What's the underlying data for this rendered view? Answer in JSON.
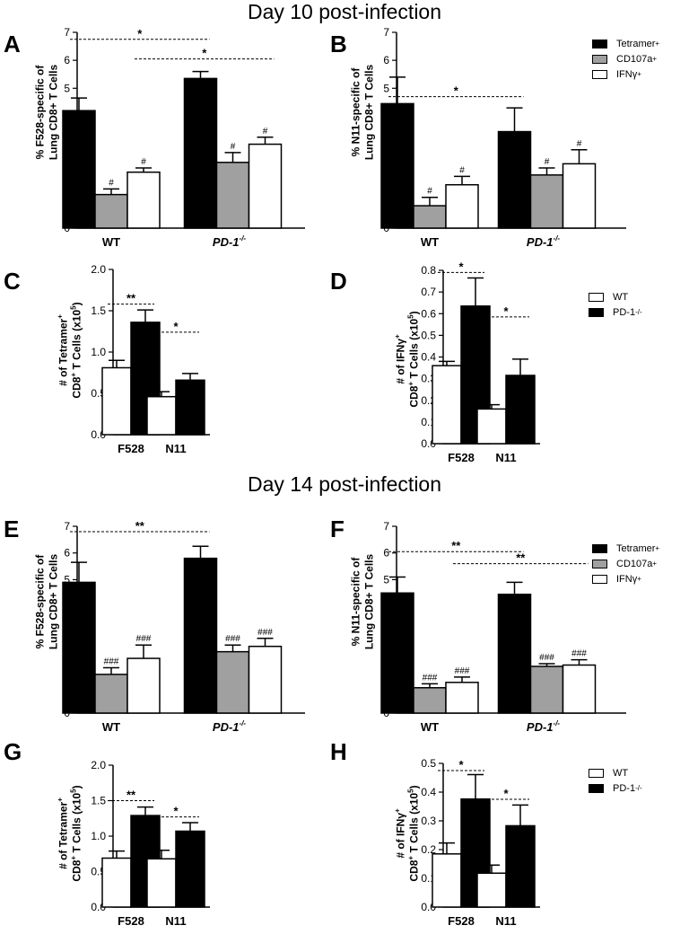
{
  "titles": {
    "day10": "Day 10 post-infection",
    "day14": "Day 14 post-infection"
  },
  "legend_a": {
    "items": [
      "Tetramer",
      "CD107a",
      "IFNγ"
    ],
    "sup": [
      "+",
      "+",
      "+"
    ],
    "colors": [
      "#000000",
      "#a0a0a0",
      "#ffffff"
    ]
  },
  "legend_b": {
    "items": [
      "WT",
      "PD-1"
    ],
    "sup": [
      "",
      "-/-"
    ],
    "colors": [
      "#ffffff",
      "#000000"
    ]
  },
  "chart_data": [
    {
      "id": "A",
      "type": "bar",
      "ylabel_lines": [
        "% F528-specific of",
        "Lung CD8+ T Cells"
      ],
      "categories": [
        "WT",
        "PD-1-/-"
      ],
      "category_style": [
        "plain",
        "italic-sup"
      ],
      "series": [
        {
          "name": "Tetramer+",
          "values": [
            4.2,
            5.35
          ],
          "errors": [
            0.45,
            0.25
          ],
          "marks": [
            "",
            ""
          ]
        },
        {
          "name": "CD107a+",
          "values": [
            1.2,
            2.35
          ],
          "errors": [
            0.2,
            0.35
          ],
          "marks": [
            "#",
            "#"
          ]
        },
        {
          "name": "IFNγ+",
          "values": [
            2.0,
            3.0
          ],
          "errors": [
            0.15,
            0.25
          ],
          "marks": [
            "#",
            "#"
          ]
        }
      ],
      "yticks": [
        0,
        1,
        2,
        3,
        4,
        5,
        6,
        7
      ],
      "ylim": [
        0,
        7
      ],
      "sig": [
        {
          "label": "*",
          "from": [
            0,
            0
          ],
          "to": [
            1,
            0
          ],
          "y": 6.75
        },
        {
          "label": "*",
          "from": [
            0,
            2
          ],
          "to": [
            1,
            2
          ],
          "y": 6.05
        }
      ]
    },
    {
      "id": "B",
      "type": "bar",
      "ylabel_lines": [
        "% N11-specific of",
        "Lung CD8+ T Cells"
      ],
      "categories": [
        "WT",
        "PD-1-/-"
      ],
      "category_style": [
        "plain",
        "italic-sup"
      ],
      "series": [
        {
          "name": "Tetramer+",
          "values": [
            4.45,
            3.45
          ],
          "errors": [
            0.95,
            0.85
          ],
          "marks": [
            "",
            ""
          ]
        },
        {
          "name": "CD107a+",
          "values": [
            0.8,
            1.9
          ],
          "errors": [
            0.3,
            0.25
          ],
          "marks": [
            "#",
            "#"
          ]
        },
        {
          "name": "IFNγ+",
          "values": [
            1.55,
            2.3
          ],
          "errors": [
            0.3,
            0.5
          ],
          "marks": [
            "#",
            "#"
          ]
        }
      ],
      "yticks": [
        0,
        1,
        2,
        3,
        4,
        5,
        6,
        7
      ],
      "ylim": [
        0,
        7
      ],
      "sig": [
        {
          "label": "*",
          "from": [
            0,
            0
          ],
          "to": [
            1,
            0
          ],
          "y": 4.7
        }
      ]
    },
    {
      "id": "C",
      "type": "bar",
      "ylabel_lines": [
        "# of Tetramer+",
        "CD8+ T Cells (x105)"
      ],
      "categories": [
        "F528",
        "N11"
      ],
      "category_style": [
        "plain",
        "plain"
      ],
      "series": [
        {
          "name": "WT",
          "values": [
            0.81,
            0.46
          ],
          "errors": [
            0.09,
            0.06
          ],
          "marks": [
            "",
            ""
          ]
        },
        {
          "name": "PD-1-/-",
          "values": [
            1.36,
            0.66
          ],
          "errors": [
            0.15,
            0.08
          ],
          "marks": [
            "",
            ""
          ]
        }
      ],
      "yticks": [
        0.0,
        0.5,
        1.0,
        1.5,
        2.0
      ],
      "ylim": [
        0,
        2.0
      ],
      "tickfmt": 1,
      "sig": [
        {
          "label": "**",
          "from": [
            0,
            0
          ],
          "to": [
            0,
            1
          ],
          "y": 1.58
        },
        {
          "label": "*",
          "from": [
            1,
            0
          ],
          "to": [
            1,
            1
          ],
          "y": 1.24
        }
      ]
    },
    {
      "id": "D",
      "type": "bar",
      "ylabel_lines": [
        "# of IFNγ+",
        "CD8+ T Cells (x105)"
      ],
      "categories": [
        "F528",
        "N11"
      ],
      "category_style": [
        "plain",
        "plain"
      ],
      "series": [
        {
          "name": "WT",
          "values": [
            0.36,
            0.16
          ],
          "errors": [
            0.02,
            0.02
          ],
          "marks": [
            "",
            ""
          ]
        },
        {
          "name": "PD-1-/-",
          "values": [
            0.635,
            0.315
          ],
          "errors": [
            0.13,
            0.075
          ],
          "marks": [
            "",
            ""
          ]
        }
      ],
      "yticks": [
        0.0,
        0.1,
        0.2,
        0.3,
        0.4,
        0.5,
        0.6,
        0.7,
        0.8
      ],
      "ylim": [
        0,
        0.8
      ],
      "tickfmt": 1,
      "sig": [
        {
          "label": "*",
          "from": [
            0,
            0
          ],
          "to": [
            0,
            1
          ],
          "y": 0.79
        },
        {
          "label": "*",
          "from": [
            1,
            0
          ],
          "to": [
            1,
            1
          ],
          "y": 0.585
        }
      ]
    },
    {
      "id": "E",
      "type": "bar",
      "ylabel_lines": [
        "% F528-specific of",
        "Lung CD8+ T Cells"
      ],
      "categories": [
        "WT",
        "PD-1-/-"
      ],
      "category_style": [
        "plain",
        "italic-sup"
      ],
      "series": [
        {
          "name": "Tetramer+",
          "values": [
            4.9,
            5.8
          ],
          "errors": [
            0.75,
            0.45
          ],
          "marks": [
            "",
            ""
          ]
        },
        {
          "name": "CD107a+",
          "values": [
            1.45,
            2.3
          ],
          "errors": [
            0.25,
            0.25
          ],
          "marks": [
            "###",
            "###"
          ]
        },
        {
          "name": "IFNγ+",
          "values": [
            2.05,
            2.5
          ],
          "errors": [
            0.5,
            0.3
          ],
          "marks": [
            "###",
            "###"
          ]
        }
      ],
      "yticks": [
        0,
        1,
        2,
        3,
        4,
        5,
        6,
        7
      ],
      "ylim": [
        0,
        7
      ],
      "sig": [
        {
          "label": "**",
          "from": [
            0,
            0
          ],
          "to": [
            1,
            0
          ],
          "y": 6.8
        }
      ]
    },
    {
      "id": "F",
      "type": "bar",
      "ylabel_lines": [
        "% N11-specific of",
        "Lung CD8+ T Cells"
      ],
      "categories": [
        "WT",
        "PD-1-/-"
      ],
      "category_style": [
        "plain",
        "italic-sup"
      ],
      "series": [
        {
          "name": "Tetramer+",
          "values": [
            4.5,
            4.45
          ],
          "errors": [
            0.6,
            0.45
          ],
          "marks": [
            "",
            ""
          ]
        },
        {
          "name": "CD107a+",
          "values": [
            0.95,
            1.75
          ],
          "errors": [
            0.15,
            0.1
          ],
          "marks": [
            "###",
            "###"
          ]
        },
        {
          "name": "IFNγ+",
          "values": [
            1.15,
            1.8
          ],
          "errors": [
            0.2,
            0.2
          ],
          "marks": [
            "###",
            "###"
          ]
        }
      ],
      "yticks": [
        0,
        1,
        2,
        3,
        4,
        5,
        6,
        7
      ],
      "ylim": [
        0,
        7
      ],
      "sig": [
        {
          "label": "**",
          "from": [
            0,
            0
          ],
          "to": [
            1,
            0
          ],
          "y": 6.05
        },
        {
          "label": "**",
          "from": [
            0,
            2
          ],
          "to": [
            1,
            2
          ],
          "y": 5.6
        }
      ]
    },
    {
      "id": "G",
      "type": "bar",
      "ylabel_lines": [
        "# of Tetramer+",
        "CD8+ T Cells (x105)"
      ],
      "categories": [
        "F528",
        "N11"
      ],
      "category_style": [
        "plain",
        "plain"
      ],
      "series": [
        {
          "name": "WT",
          "values": [
            0.69,
            0.68
          ],
          "errors": [
            0.1,
            0.12
          ],
          "marks": [
            "",
            ""
          ]
        },
        {
          "name": "PD-1-/-",
          "values": [
            1.29,
            1.07
          ],
          "errors": [
            0.12,
            0.12
          ],
          "marks": [
            "",
            ""
          ]
        }
      ],
      "yticks": [
        0.0,
        0.5,
        1.0,
        1.5,
        2.0
      ],
      "ylim": [
        0,
        2.0
      ],
      "tickfmt": 1,
      "sig": [
        {
          "label": "**",
          "from": [
            0,
            0
          ],
          "to": [
            0,
            1
          ],
          "y": 1.5
        },
        {
          "label": "*",
          "from": [
            1,
            0
          ],
          "to": [
            1,
            1
          ],
          "y": 1.27
        }
      ]
    },
    {
      "id": "H",
      "type": "bar",
      "ylabel_lines": [
        "# of IFNγ+",
        "CD8+ T Cells (x105)"
      ],
      "categories": [
        "F528",
        "N11"
      ],
      "category_style": [
        "plain",
        "plain"
      ],
      "series": [
        {
          "name": "WT",
          "values": [
            0.185,
            0.118
          ],
          "errors": [
            0.038,
            0.028
          ],
          "marks": [
            "",
            ""
          ]
        },
        {
          "name": "PD-1-/-",
          "values": [
            0.376,
            0.283
          ],
          "errors": [
            0.085,
            0.072
          ],
          "marks": [
            "",
            ""
          ]
        }
      ],
      "yticks": [
        0.0,
        0.1,
        0.2,
        0.3,
        0.4,
        0.5
      ],
      "ylim": [
        0,
        0.5
      ],
      "tickfmt": 1,
      "sig": [
        {
          "label": "*",
          "from": [
            0,
            0
          ],
          "to": [
            0,
            1
          ],
          "y": 0.475
        },
        {
          "label": "*",
          "from": [
            1,
            0
          ],
          "to": [
            1,
            1
          ],
          "y": 0.375
        }
      ]
    }
  ]
}
